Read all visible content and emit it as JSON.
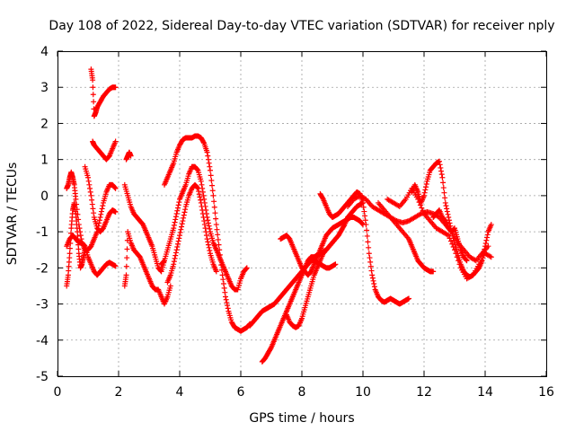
{
  "chart_data": {
    "type": "scatter",
    "title": "Day 108 of 2022, Sidereal Day-to-day VTEC variation (SDTVAR) for receiver nply",
    "xlabel": "GPS time / hours",
    "ylabel": "SDTVAR / TECUs",
    "xlim": [
      0,
      16
    ],
    "ylim": [
      -5,
      4
    ],
    "xticks": [
      0,
      2,
      4,
      6,
      8,
      10,
      12,
      14,
      16
    ],
    "yticks": [
      -5,
      -4,
      -3,
      -2,
      -1,
      0,
      1,
      2,
      3,
      4
    ],
    "x_tick_labels": [
      "0",
      "2",
      "4",
      "6",
      "8",
      "10",
      "12",
      "14",
      "16"
    ],
    "y_tick_labels": [
      "-5",
      "-4",
      "-3",
      "-2",
      "-1",
      "0",
      "1",
      "2",
      "3",
      "4"
    ],
    "grid": true,
    "marker": "plus",
    "color": "#ff0000",
    "series": [
      {
        "x": [
          1.1,
          1.15,
          1.2,
          1.25,
          1.3,
          1.4,
          1.5,
          1.6,
          1.7,
          1.8,
          1.9
        ],
        "y": [
          3.5,
          3.2,
          2.2,
          2.3,
          2.45,
          2.6,
          2.75,
          2.85,
          2.95,
          3.0,
          3.0
        ]
      },
      {
        "x": [
          1.15,
          1.2,
          1.3,
          1.4,
          1.5,
          1.6,
          1.7,
          1.8,
          1.9
        ],
        "y": [
          1.5,
          1.4,
          1.3,
          1.2,
          1.1,
          1.0,
          1.1,
          1.3,
          1.5
        ]
      },
      {
        "x": [
          0.3,
          0.35,
          0.4,
          0.45,
          0.5,
          0.55,
          0.6,
          0.7,
          0.8,
          0.9,
          1.0,
          1.1,
          1.2,
          1.3,
          1.4,
          1.5,
          1.6,
          1.7,
          1.8,
          1.9
        ],
        "y": [
          0.2,
          0.3,
          0.5,
          0.65,
          0.5,
          0.3,
          -0.1,
          -0.8,
          -1.3,
          -1.5,
          -1.5,
          -1.4,
          -1.2,
          -1.0,
          -0.6,
          -0.2,
          0.1,
          0.3,
          0.3,
          0.2
        ]
      },
      {
        "x": [
          0.3,
          0.35,
          0.4,
          0.45,
          0.5,
          0.55,
          0.6,
          0.65,
          0.7,
          0.75,
          0.8,
          0.85,
          0.9
        ],
        "y": [
          -2.5,
          -2.2,
          -1.6,
          -0.9,
          -0.4,
          -0.2,
          -0.5,
          -1.0,
          -1.6,
          -2.0,
          -1.9,
          -1.7,
          -1.5
        ]
      },
      {
        "x": [
          0.3,
          0.4,
          0.5,
          0.6,
          0.7,
          0.8,
          0.9,
          1.0,
          1.1,
          1.2,
          1.3,
          1.4,
          1.5,
          1.6,
          1.7,
          1.8,
          1.9
        ],
        "y": [
          -1.4,
          -1.2,
          -1.1,
          -1.2,
          -1.3,
          -1.3,
          -1.4,
          -1.7,
          -1.9,
          -2.1,
          -2.2,
          -2.1,
          -2.0,
          -1.9,
          -1.85,
          -1.9,
          -1.95
        ]
      },
      {
        "x": [
          0.9,
          1.0,
          1.1,
          1.2,
          1.3,
          1.4,
          1.5,
          1.6,
          1.7,
          1.8,
          1.9
        ],
        "y": [
          0.8,
          0.5,
          0.0,
          -0.6,
          -0.9,
          -1.0,
          -0.9,
          -0.7,
          -0.5,
          -0.4,
          -0.45
        ]
      },
      {
        "x": [
          2.25,
          2.3,
          2.35,
          2.4
        ],
        "y": [
          1.0,
          1.1,
          1.2,
          1.1
        ]
      },
      {
        "x": [
          2.2,
          2.3,
          2.4,
          2.5,
          2.6,
          2.7,
          2.8,
          2.9,
          3.0,
          3.1,
          3.2,
          3.3,
          3.4,
          3.5
        ],
        "y": [
          0.3,
          0.0,
          -0.3,
          -0.5,
          -0.6,
          -0.7,
          -0.8,
          -1.0,
          -1.2,
          -1.4,
          -1.7,
          -2.0,
          -2.1,
          -1.8
        ]
      },
      {
        "x": [
          2.2,
          2.25,
          2.3,
          2.4,
          2.5,
          2.6,
          2.7,
          2.8,
          2.9,
          3.0,
          3.1,
          3.2,
          3.3,
          3.4,
          3.5,
          3.6,
          3.7
        ],
        "y": [
          -2.5,
          -2.2,
          -1.0,
          -1.3,
          -1.5,
          -1.6,
          -1.7,
          -1.9,
          -2.1,
          -2.3,
          -2.5,
          -2.6,
          -2.6,
          -2.8,
          -3.0,
          -2.8,
          -2.5
        ]
      },
      {
        "x": [
          3.5,
          3.6,
          3.7,
          3.8,
          3.9,
          4.0,
          4.1,
          4.2,
          4.3,
          4.4,
          4.5,
          4.6,
          4.7,
          4.8,
          4.9,
          5.0,
          5.1,
          5.2,
          5.3,
          5.4,
          5.5,
          5.6,
          5.7,
          5.8,
          5.9,
          6.0,
          6.1,
          6.2,
          6.3
        ],
        "y": [
          0.3,
          0.5,
          0.7,
          0.9,
          1.2,
          1.4,
          1.55,
          1.6,
          1.6,
          1.6,
          1.65,
          1.65,
          1.6,
          1.45,
          1.2,
          0.7,
          0.0,
          -0.8,
          -1.5,
          -2.2,
          -2.8,
          -3.2,
          -3.5,
          -3.65,
          -3.7,
          -3.75,
          -3.7,
          -3.65,
          -3.55
        ]
      },
      {
        "x": [
          3.4,
          3.5,
          3.6,
          3.7,
          3.8,
          3.9,
          4.0,
          4.1,
          4.2,
          4.3,
          4.4,
          4.5,
          4.6,
          4.7,
          4.8,
          4.9,
          5.0,
          5.1,
          5.2,
          5.3,
          5.4,
          5.5,
          5.6,
          5.7,
          5.8,
          5.9,
          6.0,
          6.1,
          6.2
        ],
        "y": [
          -1.9,
          -1.8,
          -1.5,
          -1.2,
          -0.9,
          -0.5,
          -0.1,
          0.1,
          0.3,
          0.6,
          0.8,
          0.8,
          0.7,
          0.4,
          -0.1,
          -0.6,
          -1.0,
          -1.3,
          -1.5,
          -1.7,
          -1.9,
          -2.1,
          -2.3,
          -2.5,
          -2.6,
          -2.6,
          -2.3,
          -2.1,
          -2.0
        ]
      },
      {
        "x": [
          3.6,
          3.7,
          3.8,
          3.9,
          4.0,
          4.1,
          4.2,
          4.3,
          4.4,
          4.5,
          4.6,
          4.7,
          4.8,
          4.9,
          5.0,
          5.1,
          5.2
        ],
        "y": [
          -2.4,
          -2.2,
          -1.9,
          -1.5,
          -1.1,
          -0.7,
          -0.3,
          0.0,
          0.2,
          0.3,
          0.2,
          -0.2,
          -0.7,
          -1.2,
          -1.6,
          -1.9,
          -2.1
        ]
      },
      {
        "x": [
          6.7,
          6.8,
          6.9,
          7.0,
          7.1,
          7.2,
          7.3,
          7.4,
          7.5,
          7.6,
          7.7,
          7.8,
          7.9,
          8.0,
          8.1,
          8.2,
          8.3,
          8.4,
          8.5,
          8.6,
          8.7,
          8.8,
          8.9,
          9.0,
          9.1,
          9.2,
          9.3,
          9.4,
          9.5,
          9.6,
          9.7,
          9.8,
          9.9,
          10.0
        ],
        "y": [
          -4.6,
          -4.5,
          -4.35,
          -4.2,
          -4.0,
          -3.8,
          -3.6,
          -3.4,
          -3.2,
          -3.0,
          -2.8,
          -2.6,
          -2.4,
          -2.2,
          -2.0,
          -1.8,
          -1.7,
          -1.7,
          -1.65,
          -1.6,
          -1.55,
          -1.5,
          -1.4,
          -1.3,
          -1.2,
          -1.1,
          -0.95,
          -0.8,
          -0.6,
          -0.5,
          -0.4,
          -0.3,
          -0.25,
          -0.2
        ]
      },
      {
        "x": [
          6.3,
          6.4,
          6.5,
          6.6,
          6.7,
          6.8,
          6.9,
          7.0,
          7.1,
          7.2,
          7.3,
          7.4,
          7.5,
          7.6,
          7.7,
          7.8,
          7.9,
          8.0,
          8.1,
          8.2,
          8.3,
          8.4,
          8.5,
          8.6,
          8.7,
          8.8,
          8.9,
          9.0,
          9.1
        ],
        "y": [
          -3.6,
          -3.5,
          -3.4,
          -3.3,
          -3.2,
          -3.15,
          -3.1,
          -3.05,
          -3.0,
          -2.9,
          -2.8,
          -2.7,
          -2.6,
          -2.5,
          -2.4,
          -2.3,
          -2.2,
          -2.1,
          -2.0,
          -1.9,
          -1.8,
          -1.8,
          -1.85,
          -1.9,
          -1.95,
          -2.0,
          -2.0,
          -1.95,
          -1.9
        ]
      },
      {
        "x": [
          7.3,
          7.4,
          7.5,
          7.6,
          7.7,
          7.8,
          7.9,
          8.0,
          8.1,
          8.2,
          8.3,
          8.4,
          8.5,
          8.6,
          8.7,
          8.8,
          8.9,
          9.0,
          9.1,
          9.2,
          9.3,
          9.4,
          9.5,
          9.6,
          9.7,
          9.8,
          9.9,
          10.0
        ],
        "y": [
          -1.2,
          -1.15,
          -1.1,
          -1.2,
          -1.4,
          -1.6,
          -1.8,
          -2.0,
          -2.1,
          -2.2,
          -2.1,
          -1.9,
          -1.7,
          -1.5,
          -1.3,
          -1.1,
          -1.0,
          -0.9,
          -0.85,
          -0.8,
          -0.75,
          -0.7,
          -0.65,
          -0.6,
          -0.6,
          -0.65,
          -0.7,
          -0.8
        ]
      },
      {
        "x": [
          7.5,
          7.6,
          7.7,
          7.8,
          7.9,
          8.0,
          8.1,
          8.2,
          8.3,
          8.4,
          8.5,
          8.6,
          8.7,
          8.8
        ],
        "y": [
          -3.3,
          -3.5,
          -3.6,
          -3.65,
          -3.6,
          -3.4,
          -3.1,
          -2.8,
          -2.5,
          -2.2,
          -2.0,
          -1.8,
          -1.6,
          -1.5
        ]
      },
      {
        "x": [
          8.6,
          8.7,
          8.8,
          8.9,
          9.0,
          9.1,
          9.2,
          9.3,
          9.4,
          9.5,
          9.6,
          9.7,
          9.8,
          9.9,
          10.0,
          10.1,
          10.2,
          10.3,
          10.4,
          10.5,
          10.6,
          10.7,
          10.8,
          10.9,
          11.0,
          11.1,
          11.2,
          11.3,
          11.4,
          11.5
        ],
        "y": [
          0.05,
          -0.1,
          -0.3,
          -0.5,
          -0.6,
          -0.55,
          -0.5,
          -0.4,
          -0.3,
          -0.2,
          -0.1,
          0.0,
          0.1,
          0.05,
          -0.2,
          -0.8,
          -1.6,
          -2.2,
          -2.6,
          -2.8,
          -2.9,
          -2.95,
          -2.9,
          -2.85,
          -2.9,
          -2.95,
          -3.0,
          -2.95,
          -2.9,
          -2.85
        ]
      },
      {
        "x": [
          9.5,
          9.7,
          9.9,
          10.1,
          10.3,
          10.5,
          10.7,
          10.9,
          11.1,
          11.3,
          11.5,
          11.7,
          11.9,
          12.1,
          12.3,
          12.5,
          12.7,
          12.9,
          13.1,
          13.3,
          13.5,
          13.7,
          13.9,
          14.1
        ],
        "y": [
          -0.3,
          -0.1,
          0.0,
          -0.1,
          -0.3,
          -0.4,
          -0.5,
          -0.6,
          -0.7,
          -0.75,
          -0.7,
          -0.6,
          -0.5,
          -0.45,
          -0.5,
          -0.6,
          -0.8,
          -1.0,
          -1.3,
          -1.5,
          -1.7,
          -1.8,
          -1.6,
          -1.4
        ]
      },
      {
        "x": [
          10.5,
          10.7,
          10.9,
          11.1,
          11.3,
          11.5,
          11.6,
          11.7,
          11.8,
          11.9,
          12.0,
          12.1,
          12.2,
          12.3
        ],
        "y": [
          -0.2,
          -0.4,
          -0.6,
          -0.8,
          -1.0,
          -1.2,
          -1.4,
          -1.6,
          -1.8,
          -1.9,
          -2.0,
          -2.05,
          -2.1,
          -2.1
        ]
      },
      {
        "x": [
          10.8,
          11.0,
          11.2,
          11.4,
          11.6,
          11.8,
          12.0,
          12.2,
          12.4,
          12.6,
          12.8,
          13.0,
          13.2,
          13.4,
          13.6,
          13.8,
          14.0,
          14.2
        ],
        "y": [
          -0.1,
          -0.2,
          -0.3,
          -0.1,
          0.2,
          -0.1,
          -0.5,
          -0.7,
          -0.9,
          -1.0,
          -1.1,
          -1.5,
          -2.0,
          -2.3,
          -2.2,
          -1.9,
          -1.6,
          -1.7
        ]
      },
      {
        "x": [
          11.6,
          11.7,
          11.8,
          11.9,
          12.0,
          12.1,
          12.2,
          12.3,
          12.4,
          12.5,
          12.6,
          12.7,
          12.8,
          12.9,
          13.0,
          13.1,
          13.2,
          13.3,
          13.4,
          13.5,
          13.6,
          13.7,
          13.8,
          13.9,
          14.0,
          14.1,
          14.2
        ],
        "y": [
          0.1,
          0.3,
          0.1,
          -0.2,
          0.0,
          0.4,
          0.7,
          0.8,
          0.9,
          0.95,
          0.5,
          -0.2,
          -0.6,
          -1.0,
          -1.3,
          -1.6,
          -1.9,
          -2.1,
          -2.2,
          -2.25,
          -2.2,
          -2.1,
          -2.0,
          -1.8,
          -1.4,
          -1.0,
          -0.8
        ]
      },
      {
        "x": [
          12.3,
          12.4,
          12.5,
          12.6,
          12.7,
          12.8,
          12.9,
          13.0,
          13.1,
          13.2,
          13.3,
          13.4
        ],
        "y": [
          -0.6,
          -0.5,
          -0.4,
          -0.6,
          -0.7,
          -0.9,
          -1.0,
          -0.9,
          -1.2,
          -1.5,
          -1.7,
          -1.8
        ]
      }
    ]
  }
}
